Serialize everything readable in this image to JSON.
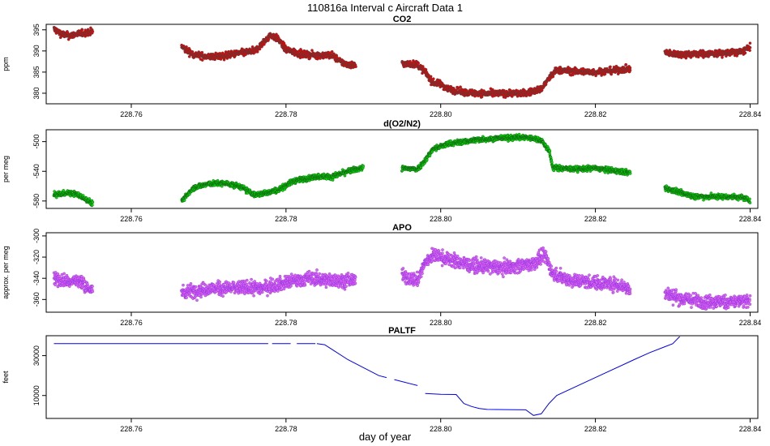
{
  "figure": {
    "title": "110816a   Interval c Aircraft Data 1",
    "xlabel": "day of year"
  },
  "chart_data": [
    {
      "type": "scatter",
      "title": "CO2",
      "xlabel": "",
      "ylabel": "ppm",
      "xlim": [
        228.749,
        228.841
      ],
      "ylim": [
        377.5,
        396.3
      ],
      "x_ticks": [
        "228.76",
        "228.78",
        "228.80",
        "228.82",
        "228.84"
      ],
      "y_ticks": [
        395,
        390,
        385,
        380
      ],
      "grid": false,
      "color": "#ee0000",
      "outline_color": "#444444",
      "point_noise": 0.55,
      "series": [
        {
          "x": [
            228.75,
            228.751,
            228.752,
            228.753,
            228.754,
            228.755
          ],
          "y": [
            395.2,
            394.0,
            393.6,
            394.0,
            394.3,
            394.6
          ]
        },
        {
          "x": [
            228.7665,
            228.768,
            228.77,
            228.772,
            228.774,
            228.776,
            228.777,
            228.778,
            228.779,
            228.78,
            228.782,
            228.784,
            228.786,
            228.787,
            228.788,
            228.789
          ],
          "y": [
            391.0,
            389.2,
            388.6,
            388.8,
            389.5,
            390.0,
            391.8,
            393.8,
            392.8,
            390.3,
            389.2,
            389.0,
            389.0,
            387.5,
            386.8,
            386.6
          ]
        },
        {
          "x": [
            228.795,
            228.797,
            228.798,
            228.799,
            228.8,
            228.801,
            228.803,
            228.806,
            228.809,
            228.811,
            228.813,
            228.814,
            228.815,
            228.817,
            228.82,
            228.823,
            228.8245
          ],
          "y": [
            387.0,
            386.8,
            385.0,
            382.5,
            382.2,
            381.0,
            380.2,
            379.9,
            380.0,
            380.0,
            381.0,
            383.5,
            385.5,
            385.2,
            385.0,
            385.5,
            385.8
          ]
        },
        {
          "x": [
            228.829,
            228.831,
            228.833,
            228.836,
            228.839,
            228.84
          ],
          "y": [
            389.5,
            389.2,
            389.3,
            389.4,
            389.8,
            391.0
          ]
        }
      ]
    },
    {
      "type": "scatter",
      "title": "d(O2/N2)",
      "xlabel": "",
      "ylabel": "per meg",
      "xlim": [
        228.749,
        228.841
      ],
      "ylim": [
        -590,
        -484
      ],
      "x_ticks": [
        "228.76",
        "228.78",
        "228.80",
        "228.82",
        "228.84"
      ],
      "y_ticks": [
        -500,
        -540,
        -580
      ],
      "grid": false,
      "color": "#00dd00",
      "outline_color": "#1a4d1a",
      "point_noise": 2.5,
      "series": [
        {
          "x": [
            228.75,
            228.751,
            228.752,
            228.753,
            228.754,
            228.755
          ],
          "y": [
            -572,
            -570,
            -569,
            -571,
            -577,
            -583
          ]
        },
        {
          "x": [
            228.7665,
            228.768,
            228.77,
            228.772,
            228.774,
            228.776,
            228.777,
            228.779,
            228.781,
            228.784,
            228.786,
            228.788,
            228.79
          ],
          "y": [
            -581,
            -562,
            -557,
            -556,
            -560,
            -572,
            -570,
            -565,
            -553,
            -547,
            -547,
            -540,
            -535
          ]
        },
        {
          "x": [
            228.795,
            228.797,
            228.798,
            228.799,
            228.801,
            228.805,
            228.808,
            228.811,
            228.813,
            228.814,
            228.8145,
            228.817,
            228.82,
            228.823,
            228.8245
          ],
          "y": [
            -536,
            -537,
            -525,
            -510,
            -503,
            -497,
            -495,
            -494,
            -498,
            -512,
            -535,
            -537,
            -536,
            -540,
            -542
          ]
        },
        {
          "x": [
            228.829,
            228.831,
            228.833,
            228.836,
            228.839,
            228.84
          ],
          "y": [
            -562,
            -569,
            -574,
            -574,
            -575,
            -579
          ]
        }
      ]
    },
    {
      "type": "scatter",
      "title": "APO",
      "xlabel": "",
      "ylabel": "approx. per meg",
      "xlim": [
        228.749,
        228.841
      ],
      "ylim": [
        -372,
        -297
      ],
      "x_ticks": [
        "228.76",
        "228.78",
        "228.80",
        "228.82",
        "228.84"
      ],
      "y_ticks": [
        -300,
        -320,
        -340,
        -360
      ],
      "grid": false,
      "color": "#dd66ee",
      "outline_color": "#8a2be2",
      "point_noise": 4.5,
      "series": [
        {
          "x": [
            228.75,
            228.751,
            228.752,
            228.753,
            228.754,
            228.755
          ],
          "y": [
            -340,
            -342,
            -343,
            -342,
            -346,
            -353
          ]
        },
        {
          "x": [
            228.7665,
            228.77,
            228.774,
            228.777,
            228.78,
            228.783,
            228.786,
            228.788,
            228.789
          ],
          "y": [
            -353,
            -350,
            -349,
            -349,
            -344,
            -340,
            -342,
            -342,
            -341
          ]
        },
        {
          "x": [
            228.795,
            228.797,
            228.798,
            228.799,
            228.801,
            228.804,
            228.808,
            228.812,
            228.8135,
            228.8145,
            228.817,
            228.82,
            228.823,
            228.8245
          ],
          "y": [
            -338,
            -342,
            -325,
            -318,
            -322,
            -328,
            -330,
            -326,
            -318,
            -336,
            -342,
            -344,
            -346,
            -350
          ]
        },
        {
          "x": [
            228.829,
            228.831,
            228.834,
            228.837,
            228.84
          ],
          "y": [
            -354,
            -359,
            -362,
            -362,
            -362
          ]
        }
      ]
    },
    {
      "type": "line",
      "title": "PALTF",
      "xlabel": "",
      "ylabel": "feet",
      "xlim": [
        228.749,
        228.841
      ],
      "ylim": [
        -1500,
        40000
      ],
      "x_ticks": [
        "228.76",
        "228.78",
        "228.80",
        "228.82",
        "228.84"
      ],
      "y_ticks": [
        30000,
        10000
      ],
      "grid": false,
      "color": "#0000ee",
      "series": [
        {
          "x": [
            228.75,
            228.7777
          ],
          "y": [
            36000,
            36000
          ]
        },
        {
          "x": [
            228.7782,
            228.7806
          ],
          "y": [
            36000,
            36000
          ]
        },
        {
          "x": [
            228.7814,
            228.7838
          ],
          "y": [
            36000,
            36000
          ]
        },
        {
          "x": [
            228.784,
            228.785,
            228.786,
            228.788,
            228.79,
            228.792,
            228.793
          ],
          "y": [
            36000,
            35500,
            33000,
            28000,
            24000,
            20000,
            19000
          ]
        },
        {
          "x": [
            228.794,
            228.797
          ],
          "y": [
            18000,
            15000
          ]
        },
        {
          "x": [
            228.798,
            228.799,
            228.8,
            228.802,
            228.803,
            228.804,
            228.805,
            228.806,
            228.811,
            228.812,
            228.813,
            228.814,
            228.815,
            228.82,
            228.825,
            228.827,
            228.829,
            228.83,
            228.831,
            228.84
          ],
          "y": [
            11000,
            10800,
            10600,
            10500,
            6000,
            4500,
            3500,
            3000,
            2800,
            0,
            800,
            6000,
            10000,
            19000,
            28000,
            31500,
            34500,
            36000,
            40000,
            40000
          ]
        }
      ]
    }
  ]
}
